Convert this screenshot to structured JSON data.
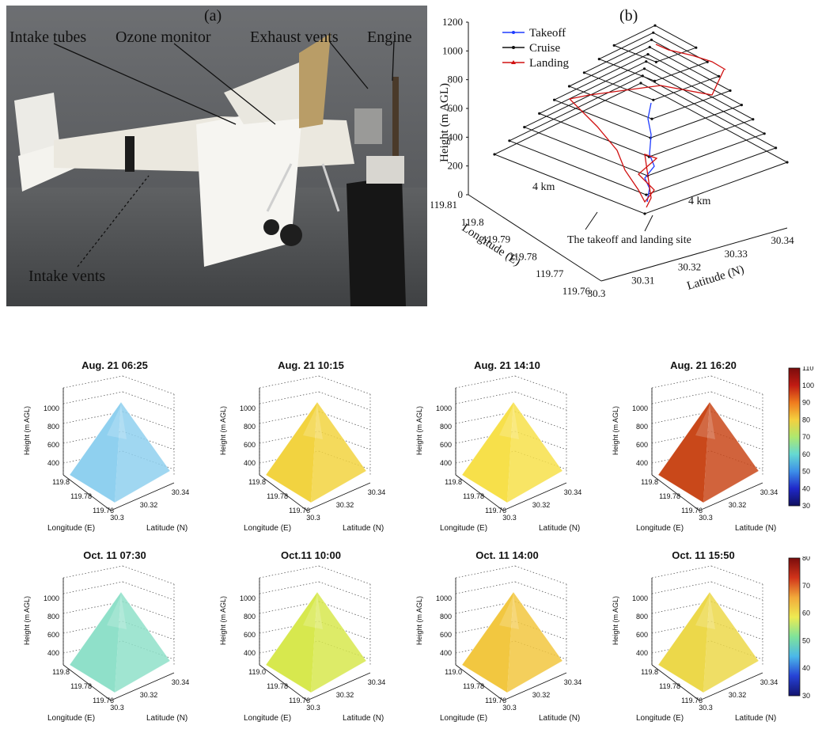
{
  "panel_a": {
    "tag": "(a)",
    "labels": {
      "intake_tubes": "Intake tubes",
      "ozone_monitor": "Ozone monitor",
      "exhaust_vents": "Exhaust vents",
      "engine": "Engine",
      "intake_vents": "Intake vents"
    }
  },
  "chart_data": [
    {
      "type": "line",
      "panel": "(b)",
      "ylabel": "Height (m AGL)",
      "xlabel": "Longitude (E)",
      "zlabel": "Latitude (N)",
      "y_ticks": [
        "0",
        "200",
        "400",
        "600",
        "800",
        "1000",
        "1200"
      ],
      "lon_ticks": [
        "119.81",
        "119.8",
        "119.79",
        "119.78",
        "119.77",
        "119.76"
      ],
      "lat_ticks": [
        "30.3",
        "30.31",
        "30.32",
        "30.33",
        "30.34"
      ],
      "ylim": [
        0,
        1200
      ],
      "legend": [
        "Takeoff",
        "Cruise",
        "Landing"
      ],
      "legend_position": "top-left",
      "series": [
        {
          "name": "Takeoff",
          "color": "#1f3cff",
          "heights": [
            0,
            100,
            200,
            300,
            400,
            500,
            600
          ]
        },
        {
          "name": "Cruise",
          "color": "#111111",
          "heights": [
            200,
            300,
            400,
            500,
            600,
            700,
            800,
            900,
            1000
          ]
        },
        {
          "name": "Landing",
          "color": "#d01010",
          "heights": [
            1000,
            900,
            700,
            500,
            300,
            100,
            0
          ]
        }
      ],
      "annotations": [
        "4 km",
        "4 km",
        "The takeoff and landing site"
      ]
    },
    {
      "type": "heatmap",
      "row": "August",
      "panels": [
        {
          "title": "Aug. 21 06:25",
          "dominant_color": "#8fd0ef"
        },
        {
          "title": "Aug. 21 10:15",
          "dominant_color": "#f2d340"
        },
        {
          "title": "Aug. 21 14:10",
          "dominant_color": "#f7e04a"
        },
        {
          "title": "Aug. 21 16:20",
          "dominant_color": "#c9481a"
        }
      ],
      "y_ticks": [
        "400",
        "600",
        "800",
        "1000"
      ],
      "ylabel": "Height (m AGL)",
      "lon_ticks": [
        "119.8",
        "119.78",
        "119.76"
      ],
      "lat_ticks": [
        "30.3",
        "30.32",
        "30.34"
      ],
      "xlabel": "Longitude (E)",
      "zlabel": "Latitude (N)",
      "colorbar": {
        "min": 30,
        "max": 110,
        "ticks": [
          "110",
          "100",
          "90",
          "80",
          "70",
          "60",
          "50",
          "40",
          "30"
        ]
      }
    },
    {
      "type": "heatmap",
      "row": "October",
      "panels": [
        {
          "title": "Oct. 11 07:30",
          "dominant_color": "#8fe0c9"
        },
        {
          "title": "Oct.11 10:00",
          "dominant_color": "#d7e84e"
        },
        {
          "title": "Oct. 11 14:00",
          "dominant_color": "#f2c740"
        },
        {
          "title": "Oct. 11 15:50",
          "dominant_color": "#ecd84a"
        }
      ],
      "y_ticks": [
        "400",
        "600",
        "800",
        "1000"
      ],
      "ylabel": "Height (m AGL)",
      "lon_ticks_panels": [
        [
          "119.8",
          "119.78",
          "119.76"
        ],
        [
          "119.0",
          "119.78",
          "119.76"
        ],
        [
          "119.0",
          "119.78",
          "119.76"
        ],
        [
          "119.8",
          "119.78",
          "119.76"
        ]
      ],
      "lat_ticks": [
        "30.3",
        "30.32",
        "30.34"
      ],
      "xlabel": "Longitude (E)",
      "zlabel": "Latitude (N)",
      "colorbar": {
        "min": 30,
        "max": 80,
        "ticks": [
          "80",
          "70",
          "60",
          "50",
          "40",
          "30"
        ]
      }
    }
  ]
}
